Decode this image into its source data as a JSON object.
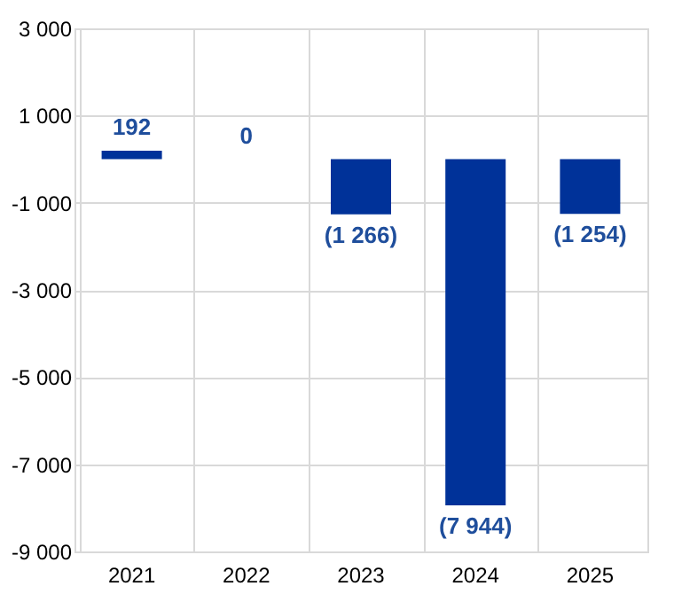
{
  "chart_data": {
    "type": "bar",
    "categories": [
      "2021",
      "2022",
      "2023",
      "2024",
      "2025"
    ],
    "values": [
      192,
      0,
      -1266,
      -7944,
      -1254
    ],
    "value_labels": [
      "192",
      "0",
      "(1 266)",
      "(7 944)",
      "(1 254)"
    ],
    "color": "#003299",
    "ylim": [
      -9000,
      3000
    ],
    "yticks": [
      {
        "value": -9000,
        "label": "-9 000"
      },
      {
        "value": -7000,
        "label": "-7 000"
      },
      {
        "value": -5000,
        "label": "-5 000"
      },
      {
        "value": -3000,
        "label": "-3 000"
      },
      {
        "value": -1000,
        "label": "-1 000"
      },
      {
        "value": 1000,
        "label": "1 000"
      },
      {
        "value": 3000,
        "label": "3 000"
      }
    ],
    "grid": true
  }
}
